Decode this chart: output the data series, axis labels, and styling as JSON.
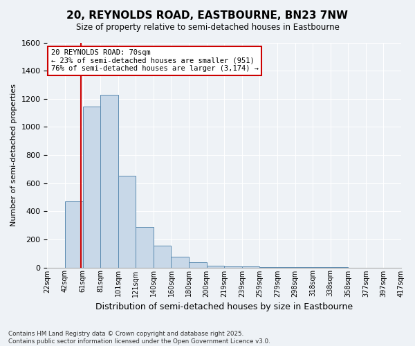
{
  "title": "20, REYNOLDS ROAD, EASTBOURNE, BN23 7NW",
  "subtitle": "Size of property relative to semi-detached houses in Eastbourne",
  "xlabel": "Distribution of semi-detached houses by size in Eastbourne",
  "ylabel": "Number of semi-detached properties",
  "bin_labels": [
    "22sqm",
    "42sqm",
    "61sqm",
    "81sqm",
    "101sqm",
    "121sqm",
    "140sqm",
    "160sqm",
    "180sqm",
    "200sqm",
    "219sqm",
    "239sqm",
    "259sqm",
    "279sqm",
    "298sqm",
    "318sqm",
    "338sqm",
    "358sqm",
    "377sqm",
    "397sqm",
    "417sqm"
  ],
  "bar_values": [
    0,
    470,
    1145,
    1230,
    650,
    290,
    155,
    75,
    35,
    14,
    8,
    5,
    3,
    2,
    1,
    1,
    1,
    0,
    0,
    0
  ],
  "bar_color": "#c8d8e8",
  "bar_edge_color": "#5a8ab0",
  "red_line_x": 1.9,
  "annotation_title": "20 REYNOLDS ROAD: 70sqm",
  "annotation_line1": "← 23% of semi-detached houses are smaller (951)",
  "annotation_line2": "76% of semi-detached houses are larger (3,174) →",
  "annotation_box_color": "#ffffff",
  "annotation_box_edge": "#cc0000",
  "ylim": [
    0,
    1600
  ],
  "yticks": [
    0,
    200,
    400,
    600,
    800,
    1000,
    1200,
    1400,
    1600
  ],
  "footer_line1": "Contains HM Land Registry data © Crown copyright and database right 2025.",
  "footer_line2": "Contains public sector information licensed under the Open Government Licence v3.0.",
  "bg_color": "#eef2f6",
  "plot_bg_color": "#eef2f6"
}
